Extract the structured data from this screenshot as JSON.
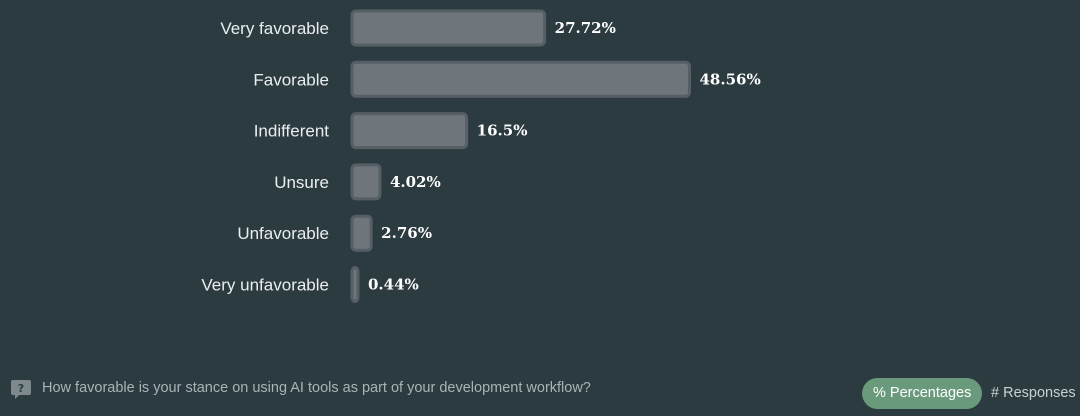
{
  "chart_data": {
    "type": "bar",
    "orientation": "horizontal",
    "categories": [
      "Very favorable",
      "Favorable",
      "Indifferent",
      "Unsure",
      "Unfavorable",
      "Very unfavorable"
    ],
    "values": [
      27.72,
      48.56,
      16.5,
      4.02,
      2.76,
      0.44
    ],
    "value_labels": [
      "27.72%",
      "48.56%",
      "16.5%",
      "4.02%",
      "2.76%",
      "0.44%"
    ],
    "title": "",
    "xlabel": "",
    "ylabel": "",
    "grid": false,
    "legend": "none",
    "colors": {
      "bar_fill": "#6e757b",
      "bar_border": "#565f65",
      "background": "#2c3b40"
    }
  },
  "footer": {
    "question_icon": "question-mark-icon",
    "question": "How favorable is your stance on using AI tools as part of your development workflow?",
    "toggle": {
      "percentages_label": "% Percentages",
      "responses_label": "# Responses",
      "active": "percentages",
      "active_color": "#699a7b"
    }
  }
}
